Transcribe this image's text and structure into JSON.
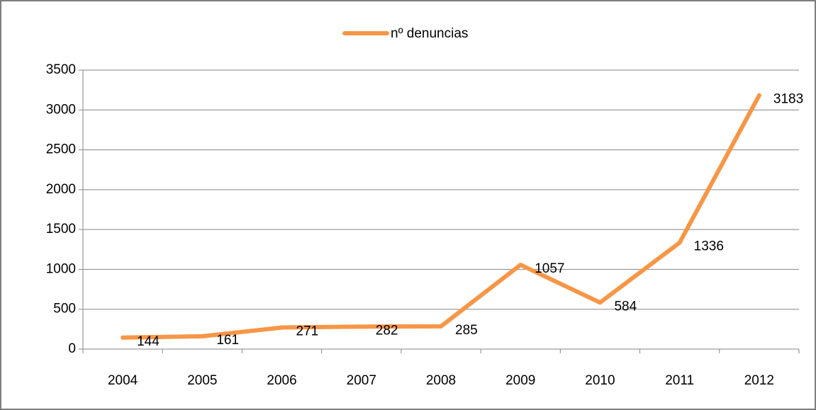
{
  "chart_data": {
    "type": "line",
    "categories": [
      "2004",
      "2005",
      "2006",
      "2007",
      "2008",
      "2009",
      "2010",
      "2011",
      "2012"
    ],
    "series": [
      {
        "name": "nº denuncias",
        "color": "#f79646",
        "values": [
          144,
          161,
          271,
          282,
          285,
          1057,
          584,
          1336,
          3183
        ]
      }
    ],
    "ylim": [
      0,
      3500
    ],
    "yticks": [
      0,
      500,
      1000,
      1500,
      2000,
      2500,
      3000,
      3500
    ],
    "grid": true,
    "legend": "top",
    "data_labels": true
  }
}
